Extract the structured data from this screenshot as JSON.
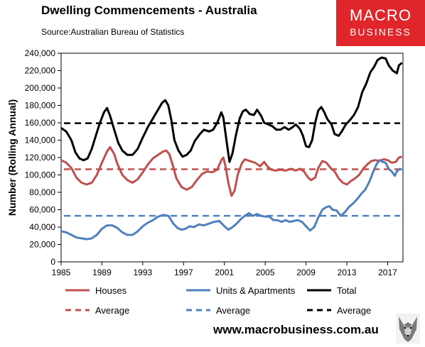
{
  "header": {
    "title": "Dwelling Commencements - Australia",
    "source": "Source:Australian Bureau of Statistics"
  },
  "logo": {
    "line1": "MACRO",
    "line2": "BUSINESS"
  },
  "footer": {
    "url": "www.macrobusiness.com.au"
  },
  "colors": {
    "houses": "#c0504d",
    "units": "#4f81bd",
    "total": "#000000",
    "logo_bg": "#e0262b"
  },
  "chart_data": {
    "type": "line",
    "title": "Dwelling Commencements - Australia",
    "ylabel": "Number (Rolling Annual)",
    "xlabel": "",
    "xlim": [
      1985,
      2018.5
    ],
    "ylim": [
      0,
      240000
    ],
    "x_ticks": [
      "1985",
      "1989",
      "1993",
      "1997",
      "2001",
      "2005",
      "2009",
      "2013",
      "2017"
    ],
    "y_ticks": [
      "0",
      "20,000",
      "40,000",
      "60,000",
      "80,000",
      "100,000",
      "120,000",
      "140,000",
      "160,000",
      "180,000",
      "200,000",
      "220,000",
      "240,000"
    ],
    "grid": false,
    "legend_position": "bottom",
    "series": [
      {
        "name": "Houses",
        "key": "houses",
        "points": [
          [
            1985.0,
            117000
          ],
          [
            1985.5,
            114000
          ],
          [
            1986.0,
            108000
          ],
          [
            1986.5,
            97000
          ],
          [
            1987.0,
            91000
          ],
          [
            1987.5,
            89000
          ],
          [
            1988.0,
            91000
          ],
          [
            1988.5,
            100000
          ],
          [
            1989.0,
            114000
          ],
          [
            1989.5,
            127000
          ],
          [
            1989.8,
            132000
          ],
          [
            1990.2,
            124000
          ],
          [
            1990.5,
            113000
          ],
          [
            1991.0,
            100000
          ],
          [
            1991.5,
            94000
          ],
          [
            1992.0,
            91000
          ],
          [
            1992.5,
            95000
          ],
          [
            1993.0,
            103000
          ],
          [
            1993.5,
            112000
          ],
          [
            1994.0,
            119000
          ],
          [
            1994.5,
            123000
          ],
          [
            1995.0,
            127000
          ],
          [
            1995.3,
            128000
          ],
          [
            1995.6,
            124000
          ],
          [
            1996.0,
            109000
          ],
          [
            1996.3,
            96000
          ],
          [
            1996.8,
            86000
          ],
          [
            1997.3,
            83000
          ],
          [
            1997.8,
            86000
          ],
          [
            1998.3,
            94000
          ],
          [
            1998.8,
            101000
          ],
          [
            1999.3,
            104000
          ],
          [
            1999.8,
            103000
          ],
          [
            2000.3,
            106000
          ],
          [
            2000.7,
            117000
          ],
          [
            2000.9,
            120000
          ],
          [
            2001.1,
            110000
          ],
          [
            2001.4,
            90000
          ],
          [
            2001.7,
            76000
          ],
          [
            2002.0,
            82000
          ],
          [
            2002.3,
            100000
          ],
          [
            2002.7,
            113000
          ],
          [
            2003.0,
            118000
          ],
          [
            2003.5,
            116000
          ],
          [
            2004.0,
            114000
          ],
          [
            2004.5,
            110000
          ],
          [
            2004.9,
            115000
          ],
          [
            2005.2,
            110000
          ],
          [
            2005.6,
            106000
          ],
          [
            2006.0,
            105000
          ],
          [
            2006.5,
            106000
          ],
          [
            2007.0,
            105000
          ],
          [
            2007.5,
            107000
          ],
          [
            2008.0,
            105000
          ],
          [
            2008.4,
            107000
          ],
          [
            2008.8,
            104000
          ],
          [
            2009.2,
            97000
          ],
          [
            2009.5,
            94000
          ],
          [
            2009.9,
            97000
          ],
          [
            2010.2,
            108000
          ],
          [
            2010.6,
            116000
          ],
          [
            2011.0,
            114000
          ],
          [
            2011.4,
            108000
          ],
          [
            2011.8,
            104000
          ],
          [
            2012.2,
            96000
          ],
          [
            2012.6,
            91000
          ],
          [
            2013.0,
            89000
          ],
          [
            2013.4,
            93000
          ],
          [
            2013.8,
            96000
          ],
          [
            2014.2,
            100000
          ],
          [
            2014.6,
            107000
          ],
          [
            2015.0,
            112000
          ],
          [
            2015.4,
            116000
          ],
          [
            2015.8,
            117000
          ],
          [
            2016.2,
            116000
          ],
          [
            2016.6,
            118000
          ],
          [
            2017.0,
            117000
          ],
          [
            2017.4,
            114000
          ],
          [
            2017.8,
            115000
          ],
          [
            2018.1,
            120000
          ],
          [
            2018.4,
            121000
          ]
        ]
      },
      {
        "name": "Units & Apartments",
        "key": "units",
        "points": [
          [
            1985.0,
            35000
          ],
          [
            1985.5,
            34000
          ],
          [
            1986.0,
            31000
          ],
          [
            1986.5,
            28000
          ],
          [
            1987.0,
            27000
          ],
          [
            1987.5,
            26000
          ],
          [
            1988.0,
            27000
          ],
          [
            1988.5,
            31000
          ],
          [
            1989.0,
            38000
          ],
          [
            1989.5,
            42000
          ],
          [
            1990.0,
            42000
          ],
          [
            1990.5,
            39000
          ],
          [
            1991.0,
            34000
          ],
          [
            1991.5,
            31000
          ],
          [
            1992.0,
            31000
          ],
          [
            1992.5,
            35000
          ],
          [
            1993.0,
            41000
          ],
          [
            1993.5,
            45000
          ],
          [
            1994.0,
            48000
          ],
          [
            1994.5,
            52000
          ],
          [
            1995.0,
            54000
          ],
          [
            1995.5,
            53000
          ],
          [
            1996.0,
            44000
          ],
          [
            1996.4,
            39000
          ],
          [
            1996.8,
            37000
          ],
          [
            1997.2,
            38000
          ],
          [
            1997.6,
            41000
          ],
          [
            1998.0,
            40000
          ],
          [
            1998.5,
            43000
          ],
          [
            1999.0,
            42000
          ],
          [
            1999.5,
            44000
          ],
          [
            2000.0,
            46000
          ],
          [
            2000.5,
            47000
          ],
          [
            2001.0,
            41000
          ],
          [
            2001.4,
            37000
          ],
          [
            2001.8,
            40000
          ],
          [
            2002.2,
            44000
          ],
          [
            2002.6,
            49000
          ],
          [
            2003.0,
            53000
          ],
          [
            2003.4,
            56000
          ],
          [
            2003.8,
            53000
          ],
          [
            2004.2,
            55000
          ],
          [
            2004.6,
            53000
          ],
          [
            2005.0,
            52000
          ],
          [
            2005.4,
            52000
          ],
          [
            2005.8,
            48000
          ],
          [
            2006.2,
            48000
          ],
          [
            2006.6,
            46000
          ],
          [
            2007.0,
            48000
          ],
          [
            2007.4,
            46000
          ],
          [
            2007.8,
            47000
          ],
          [
            2008.2,
            48000
          ],
          [
            2008.6,
            46000
          ],
          [
            2009.0,
            41000
          ],
          [
            2009.4,
            36000
          ],
          [
            2009.8,
            40000
          ],
          [
            2010.2,
            51000
          ],
          [
            2010.6,
            60000
          ],
          [
            2011.0,
            63000
          ],
          [
            2011.3,
            64000
          ],
          [
            2011.6,
            60000
          ],
          [
            2012.0,
            59000
          ],
          [
            2012.4,
            53000
          ],
          [
            2012.8,
            57000
          ],
          [
            2013.2,
            63000
          ],
          [
            2013.6,
            67000
          ],
          [
            2014.0,
            72000
          ],
          [
            2014.4,
            78000
          ],
          [
            2014.8,
            83000
          ],
          [
            2015.2,
            92000
          ],
          [
            2015.6,
            104000
          ],
          [
            2015.9,
            112000
          ],
          [
            2016.2,
            117000
          ],
          [
            2016.5,
            115000
          ],
          [
            2016.8,
            114000
          ],
          [
            2017.1,
            107000
          ],
          [
            2017.4,
            104000
          ],
          [
            2017.7,
            99000
          ],
          [
            2017.9,
            104000
          ],
          [
            2018.2,
            107000
          ],
          [
            2018.4,
            106000
          ]
        ]
      },
      {
        "name": "Total",
        "key": "total",
        "points": [
          [
            1985.0,
            154000
          ],
          [
            1985.5,
            150000
          ],
          [
            1986.0,
            140000
          ],
          [
            1986.4,
            126000
          ],
          [
            1986.8,
            119000
          ],
          [
            1987.2,
            117000
          ],
          [
            1987.6,
            119000
          ],
          [
            1988.0,
            130000
          ],
          [
            1988.4,
            145000
          ],
          [
            1988.8,
            160000
          ],
          [
            1989.2,
            172000
          ],
          [
            1989.5,
            177000
          ],
          [
            1989.8,
            168000
          ],
          [
            1990.2,
            152000
          ],
          [
            1990.6,
            137000
          ],
          [
            1991.0,
            128000
          ],
          [
            1991.5,
            123000
          ],
          [
            1992.0,
            123000
          ],
          [
            1992.5,
            130000
          ],
          [
            1993.0,
            143000
          ],
          [
            1993.5,
            155000
          ],
          [
            1994.0,
            165000
          ],
          [
            1994.5,
            175000
          ],
          [
            1994.9,
            183000
          ],
          [
            1995.2,
            186000
          ],
          [
            1995.5,
            180000
          ],
          [
            1995.8,
            163000
          ],
          [
            1996.1,
            140000
          ],
          [
            1996.5,
            128000
          ],
          [
            1996.9,
            121000
          ],
          [
            1997.3,
            123000
          ],
          [
            1997.7,
            128000
          ],
          [
            1998.1,
            139000
          ],
          [
            1998.6,
            147000
          ],
          [
            1999.0,
            152000
          ],
          [
            1999.5,
            150000
          ],
          [
            1999.9,
            152000
          ],
          [
            2000.3,
            160000
          ],
          [
            2000.7,
            172000
          ],
          [
            2000.9,
            166000
          ],
          [
            2001.2,
            140000
          ],
          [
            2001.5,
            115000
          ],
          [
            2001.8,
            125000
          ],
          [
            2002.1,
            144000
          ],
          [
            2002.5,
            165000
          ],
          [
            2002.8,
            173000
          ],
          [
            2003.1,
            175000
          ],
          [
            2003.5,
            170000
          ],
          [
            2003.9,
            169000
          ],
          [
            2004.2,
            175000
          ],
          [
            2004.6,
            168000
          ],
          [
            2004.9,
            160000
          ],
          [
            2005.3,
            158000
          ],
          [
            2005.7,
            156000
          ],
          [
            2006.1,
            152000
          ],
          [
            2006.5,
            152000
          ],
          [
            2006.9,
            155000
          ],
          [
            2007.3,
            152000
          ],
          [
            2007.7,
            155000
          ],
          [
            2008.0,
            158000
          ],
          [
            2008.4,
            153000
          ],
          [
            2008.7,
            145000
          ],
          [
            2009.0,
            133000
          ],
          [
            2009.3,
            132000
          ],
          [
            2009.6,
            140000
          ],
          [
            2009.9,
            160000
          ],
          [
            2010.2,
            174000
          ],
          [
            2010.5,
            178000
          ],
          [
            2010.8,
            172000
          ],
          [
            2011.1,
            164000
          ],
          [
            2011.5,
            158000
          ],
          [
            2011.8,
            147000
          ],
          [
            2012.2,
            145000
          ],
          [
            2012.5,
            150000
          ],
          [
            2012.9,
            158000
          ],
          [
            2013.3,
            163000
          ],
          [
            2013.7,
            169000
          ],
          [
            2014.1,
            178000
          ],
          [
            2014.5,
            195000
          ],
          [
            2014.9,
            205000
          ],
          [
            2015.3,
            218000
          ],
          [
            2015.7,
            225000
          ],
          [
            2016.0,
            232000
          ],
          [
            2016.4,
            235000
          ],
          [
            2016.8,
            234000
          ],
          [
            2017.1,
            226000
          ],
          [
            2017.5,
            220000
          ],
          [
            2017.9,
            217000
          ],
          [
            2018.1,
            226000
          ],
          [
            2018.4,
            229000
          ]
        ]
      }
    ],
    "averages": [
      {
        "name": "Average",
        "key": "houses",
        "value": 106500
      },
      {
        "name": "Average",
        "key": "units",
        "value": 53000
      },
      {
        "name": "Average",
        "key": "total",
        "value": 159500
      }
    ],
    "legend": [
      {
        "label": "Houses",
        "key": "houses",
        "dashed": false
      },
      {
        "label": "Units & Apartments",
        "key": "units",
        "dashed": false
      },
      {
        "label": "Total",
        "key": "total",
        "dashed": false
      },
      {
        "label": "Average",
        "key": "houses",
        "dashed": true
      },
      {
        "label": "Average",
        "key": "units",
        "dashed": true
      },
      {
        "label": "Average",
        "key": "total",
        "dashed": true
      }
    ]
  }
}
